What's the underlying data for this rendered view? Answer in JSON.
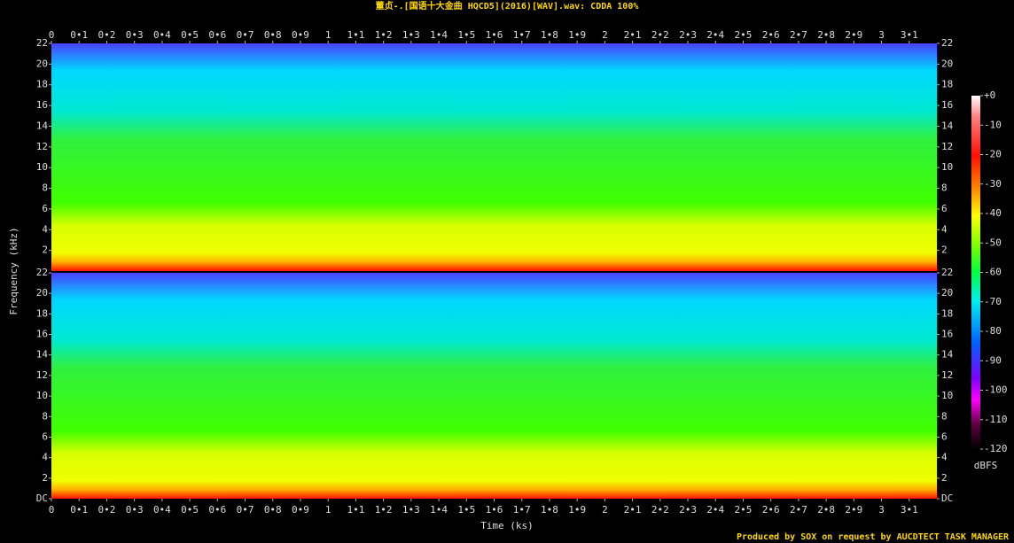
{
  "chart_data": {
    "type": "spectrogram",
    "title": "董贞-.[国语十大金曲 HQCD5](2016)[WAV].wav: CDDA 100%",
    "xlabel": "Time (ks)",
    "ylabel": "Frequency (kHz)",
    "footer": "Produced by SOX on request by AUCDTECT TASK MANAGER",
    "xlim": [
      0,
      3.2
    ],
    "xticks": [
      0,
      {
        "value": 0.1,
        "label": "0•1"
      },
      {
        "value": 0.2,
        "label": "0•2"
      },
      {
        "value": 0.3,
        "label": "0•3"
      },
      {
        "value": 0.4,
        "label": "0•4"
      },
      {
        "value": 0.5,
        "label": "0•5"
      },
      {
        "value": 0.6,
        "label": "0•6"
      },
      {
        "value": 0.7,
        "label": "0•7"
      },
      {
        "value": 0.8,
        "label": "0•8"
      },
      {
        "value": 0.9,
        "label": "0•9"
      },
      1,
      {
        "value": 1.1,
        "label": "1•1"
      },
      {
        "value": 1.2,
        "label": "1•2"
      },
      {
        "value": 1.3,
        "label": "1•3"
      },
      {
        "value": 1.4,
        "label": "1•4"
      },
      {
        "value": 1.5,
        "label": "1•5"
      },
      {
        "value": 1.6,
        "label": "1•6"
      },
      {
        "value": 1.7,
        "label": "1•7"
      },
      {
        "value": 1.8,
        "label": "1•8"
      },
      {
        "value": 1.9,
        "label": "1•9"
      },
      2,
      {
        "value": 2.1,
        "label": "2•1"
      },
      {
        "value": 2.2,
        "label": "2•2"
      },
      {
        "value": 2.3,
        "label": "2•3"
      },
      {
        "value": 2.4,
        "label": "2•4"
      },
      {
        "value": 2.5,
        "label": "2•5"
      },
      {
        "value": 2.6,
        "label": "2•6"
      },
      {
        "value": 2.7,
        "label": "2•7"
      },
      {
        "value": 2.8,
        "label": "2•8"
      },
      {
        "value": 2.9,
        "label": "2•9"
      },
      3,
      {
        "value": 3.1,
        "label": "3•1"
      }
    ],
    "channels": [
      {
        "ylim": [
          0,
          22
        ],
        "yticks": [
          2,
          4,
          6,
          8,
          10,
          12,
          14,
          16,
          18,
          20,
          22
        ]
      },
      {
        "ylim": [
          0,
          22
        ],
        "yticks": [
          {
            "value": 0,
            "label": "DC"
          },
          2,
          4,
          6,
          8,
          10,
          12,
          14,
          16,
          18,
          20,
          22
        ]
      }
    ],
    "colorbar": {
      "label": "dBFS",
      "lim": [
        -120,
        0
      ],
      "ticks": [
        {
          "value": 0,
          "label": "+0"
        },
        -10,
        -20,
        -30,
        -40,
        -50,
        -60,
        -70,
        -80,
        -90,
        -100,
        -110,
        -120
      ]
    }
  }
}
